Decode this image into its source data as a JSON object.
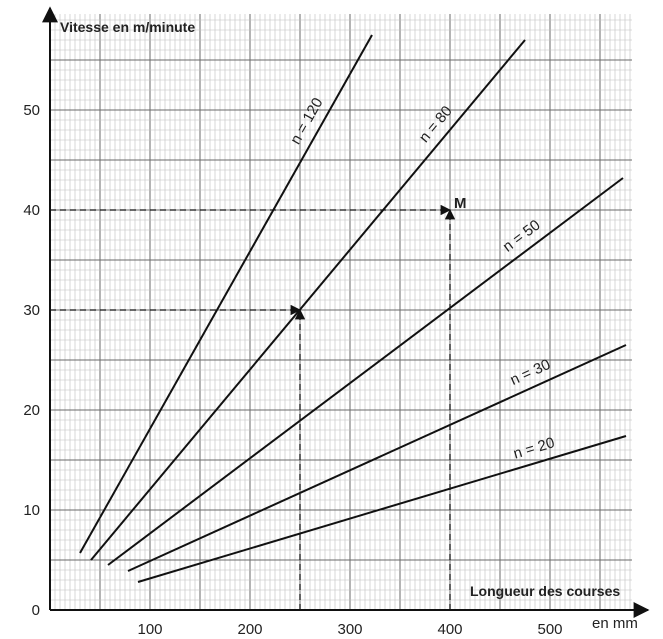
{
  "chart_data": {
    "type": "line",
    "title": "",
    "ylabel": "Vitesse en m/minute",
    "xlabel": "Longueur des courses",
    "xunit": "en mm",
    "xlim": [
      0,
      600
    ],
    "ylim": [
      0,
      60
    ],
    "xticks": [
      100,
      200,
      300,
      400,
      500
    ],
    "yticks": [
      0,
      10,
      20,
      30,
      40,
      50
    ],
    "grid": true,
    "series": [
      {
        "name": "n = 120",
        "x": [
          30,
          322
        ],
        "y": [
          5.7,
          57.5
        ]
      },
      {
        "name": "n = 80",
        "x": [
          41,
          475
        ],
        "y": [
          5.0,
          57.0
        ]
      },
      {
        "name": "n = 50",
        "x": [
          58,
          573
        ],
        "y": [
          4.5,
          43.2
        ]
      },
      {
        "name": "n = 30",
        "x": [
          78,
          576
        ],
        "y": [
          3.9,
          26.5
        ]
      },
      {
        "name": "n = 20",
        "x": [
          88,
          576
        ],
        "y": [
          2.8,
          17.4
        ]
      }
    ],
    "guides": [
      {
        "x": [
          0,
          250
        ],
        "y": [
          30,
          30
        ]
      },
      {
        "x": [
          250,
          250
        ],
        "y": [
          0,
          30
        ]
      },
      {
        "x": [
          0,
          400
        ],
        "y": [
          40,
          40
        ]
      },
      {
        "x": [
          400,
          400
        ],
        "y": [
          0,
          40
        ]
      }
    ],
    "point_label": "M"
  }
}
